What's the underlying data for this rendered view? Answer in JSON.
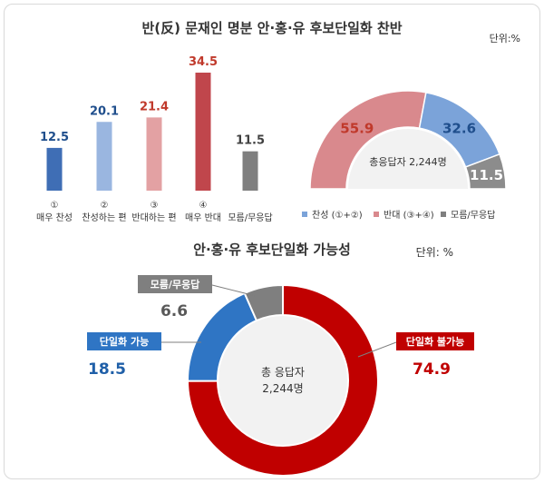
{
  "chart_data": [
    {
      "type": "bar",
      "title": "반(反) 문재인 명분 안·홍·유 후보단일화 찬반",
      "unit": "단위:%",
      "categories": [
        {
          "num": "①",
          "label": "매우 찬성"
        },
        {
          "num": "②",
          "label": "찬성하는 편"
        },
        {
          "num": "③",
          "label": "반대하는 편"
        },
        {
          "num": "④",
          "label": "매우 반대"
        },
        {
          "num": "",
          "label": "모름/무응답"
        }
      ],
      "values": [
        12.5,
        20.1,
        21.4,
        34.5,
        11.5
      ],
      "value_labels": [
        "12.5",
        "20.1",
        "21.4",
        "34.5",
        "11.5"
      ],
      "colors": [
        "#3f6eb5",
        "#9ab6e0",
        "#e3a1a3",
        "#c0464c",
        "#7f7f7f"
      ],
      "label_colors": [
        "#1f4e8c",
        "#1f4e8c",
        "#c0392b",
        "#c0392b",
        "#404040"
      ],
      "ylim": [
        0,
        40
      ]
    },
    {
      "type": "pie",
      "subtype": "semi-donut",
      "categories": [
        "반대 (③+④)",
        "찬성 (①+②)",
        "모름/무응답"
      ],
      "values": [
        55.9,
        32.6,
        11.5
      ],
      "value_labels": [
        "55.9",
        "32.6",
        "11.5"
      ],
      "colors": [
        "#d9898d",
        "#7ba3d9",
        "#8c8c8c"
      ],
      "center_text": "총응답자 2,244명",
      "legend": [
        {
          "label": "찬성 (①+②)",
          "color": "#7ba3d9"
        },
        {
          "label": "반대 (③+④)",
          "color": "#d9898d"
        },
        {
          "label": "모름/무응답",
          "color": "#7f7f7f"
        }
      ],
      "legend_position": "bottom"
    },
    {
      "type": "pie",
      "subtype": "donut",
      "title": "안·홍·유 후보단일화 가능성",
      "unit": "단위: %",
      "categories": [
        "단일화 불가능",
        "단일화 가능",
        "모름/무응답"
      ],
      "values": [
        74.9,
        18.5,
        6.6
      ],
      "value_labels": [
        "74.9",
        "18.5",
        "6.6"
      ],
      "colors": [
        "#c00000",
        "#2f75c4",
        "#7f7f7f"
      ],
      "center_text": [
        "총 응답자",
        "2,244명"
      ]
    }
  ]
}
